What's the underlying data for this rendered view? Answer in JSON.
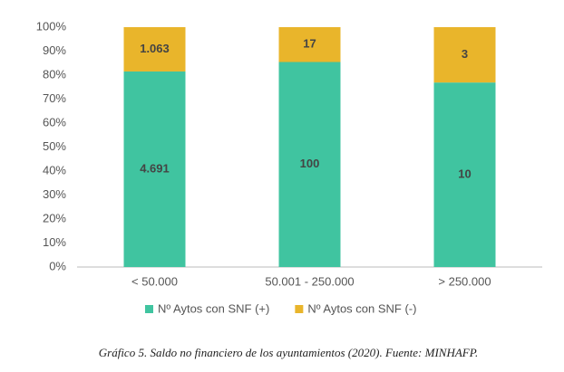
{
  "chart_data": {
    "type": "bar",
    "stacking": "percent",
    "categories": [
      "< 50.000",
      "50.001 - 250.000",
      "> 250.000"
    ],
    "series": [
      {
        "name": "Nº Aytos con SNF (+)",
        "color": "#40c4a0",
        "values": [
          4691,
          100,
          10
        ],
        "value_labels": [
          "4.691",
          "100",
          "10"
        ]
      },
      {
        "name": "Nº Aytos con SNF (-)",
        "color": "#e9b52b",
        "values": [
          1063,
          17,
          3
        ],
        "value_labels": [
          "1.063",
          "17",
          "3"
        ]
      }
    ],
    "ylim": [
      0,
      100
    ],
    "yticks": [
      {
        "value": 0,
        "label": "0%"
      },
      {
        "value": 10,
        "label": "10%"
      },
      {
        "value": 20,
        "label": "20%"
      },
      {
        "value": 30,
        "label": "30%"
      },
      {
        "value": 40,
        "label": "40%"
      },
      {
        "value": 50,
        "label": "50%"
      },
      {
        "value": 60,
        "label": "60%"
      },
      {
        "value": 70,
        "label": "70%"
      },
      {
        "value": 80,
        "label": "80%"
      },
      {
        "value": 90,
        "label": "90%"
      },
      {
        "value": 100,
        "label": "100%"
      }
    ],
    "grid": false,
    "legend": "bottom",
    "caption": "Gráfico 5. Saldo no financiero de los ayuntamientos (2020). Fuente: MINHAFP."
  }
}
